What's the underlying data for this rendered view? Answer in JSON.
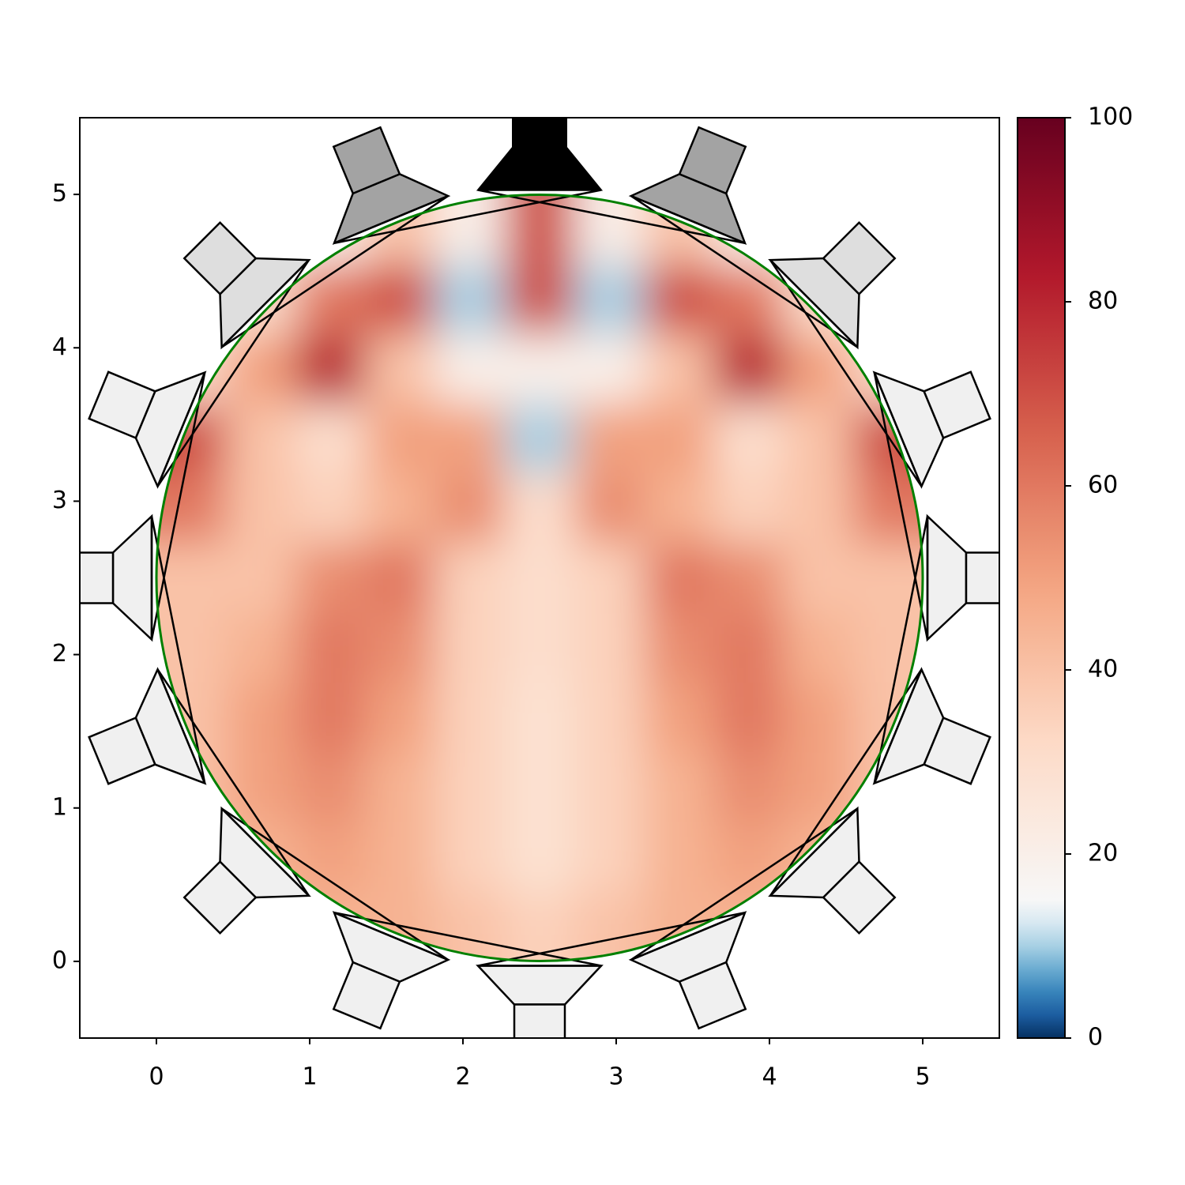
{
  "chart_data": {
    "type": "heatmap",
    "xlim": [
      -0.5,
      5.5
    ],
    "ylim": [
      -0.5,
      5.5
    ],
    "xticks": [
      0,
      1,
      2,
      3,
      4,
      5
    ],
    "yticks": [
      0,
      1,
      2,
      3,
      4,
      5
    ],
    "zextent": [
      0,
      5,
      0,
      5
    ],
    "z": [
      [
        20,
        20,
        20,
        40,
        20,
        70,
        20,
        40,
        20,
        20,
        20
      ],
      [
        20,
        30,
        60,
        70,
        10,
        70,
        10,
        70,
        60,
        30,
        20
      ],
      [
        30,
        50,
        80,
        40,
        20,
        20,
        20,
        40,
        80,
        50,
        30
      ],
      [
        70,
        40,
        30,
        50,
        50,
        10,
        50,
        50,
        30,
        40,
        70
      ],
      [
        60,
        40,
        35,
        45,
        55,
        30,
        55,
        45,
        35,
        40,
        60
      ],
      [
        40,
        40,
        55,
        60,
        35,
        30,
        35,
        60,
        55,
        40,
        40
      ],
      [
        40,
        45,
        60,
        55,
        35,
        30,
        35,
        55,
        60,
        45,
        40
      ],
      [
        40,
        50,
        60,
        50,
        35,
        28,
        35,
        50,
        60,
        50,
        40
      ],
      [
        40,
        50,
        55,
        45,
        35,
        28,
        35,
        45,
        55,
        50,
        40
      ],
      [
        40,
        45,
        50,
        45,
        35,
        28,
        35,
        45,
        50,
        45,
        40
      ],
      [
        40,
        40,
        45,
        45,
        40,
        35,
        40,
        45,
        45,
        40,
        40
      ]
    ],
    "colormap": "RdBu_r",
    "clim": [
      0,
      100
    ],
    "cmap_center": 15,
    "cticks": [
      0,
      20,
      40,
      60,
      80,
      100
    ],
    "boundary_color": "#008000"
  }
}
